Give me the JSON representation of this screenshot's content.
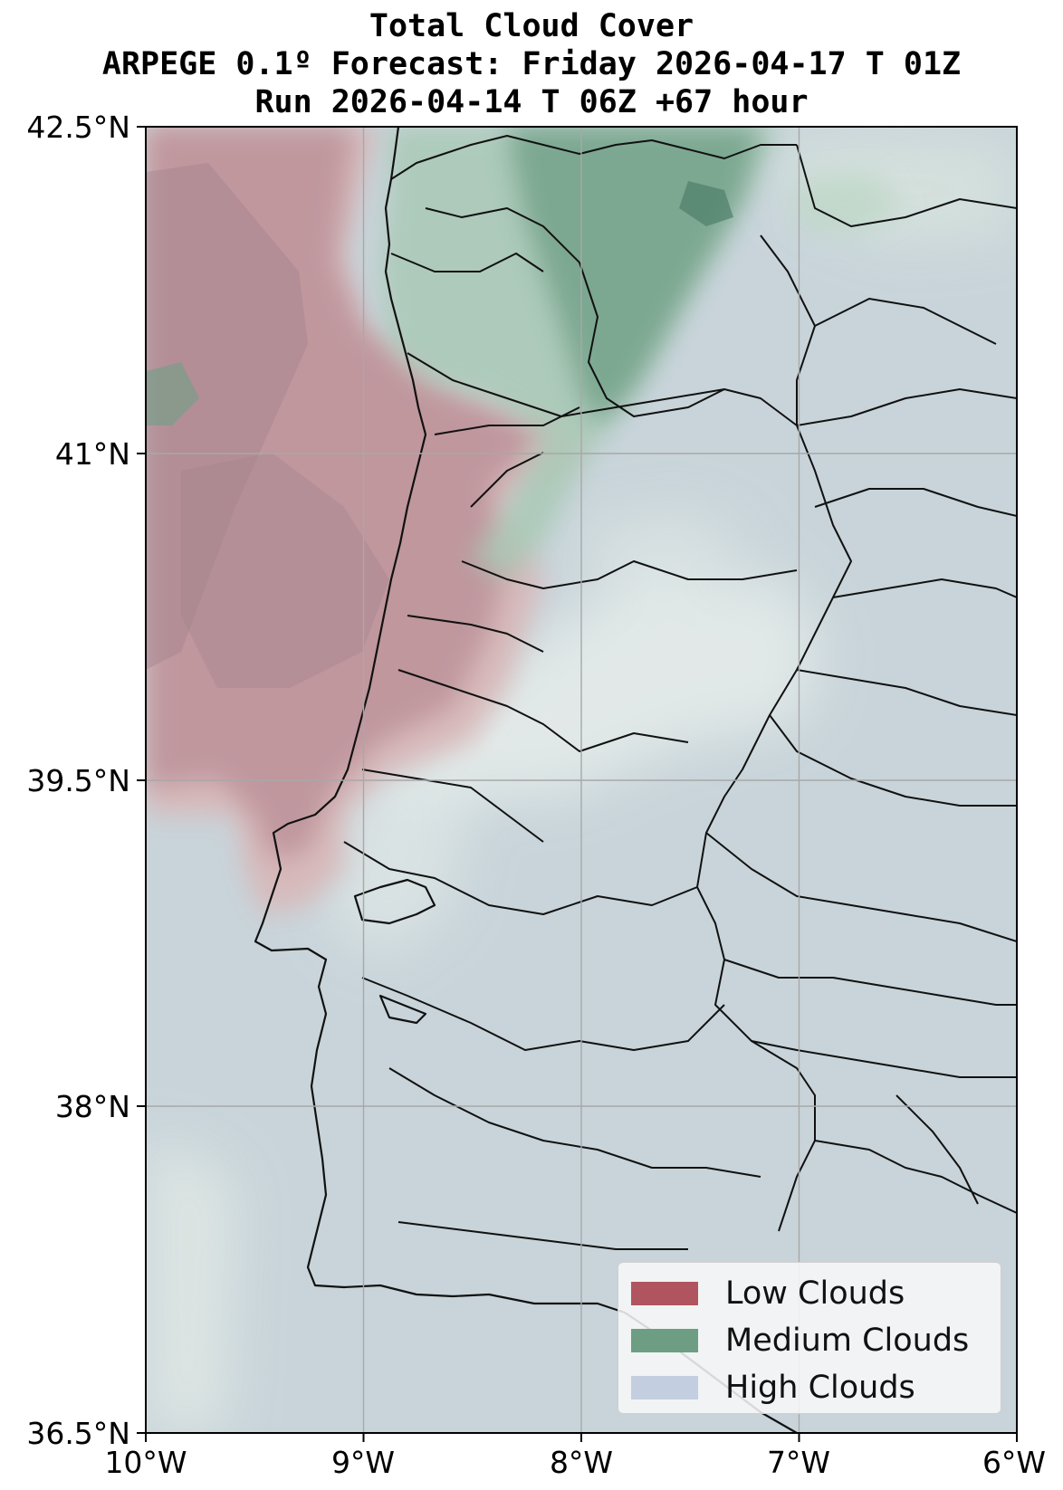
{
  "title": {
    "line1": "Total Cloud Cover",
    "line2": "ARPEGE 0.1º Forecast: Friday 2026-04-17 T 01Z",
    "line3": "Run 2026-04-14 T 06Z +67 hour"
  },
  "axes": {
    "lat_ticks": [
      "42.5°N",
      "41°N",
      "39.5°N",
      "38°N",
      "36.5°N"
    ],
    "lon_ticks": [
      "10°W",
      "9°W",
      "8°W",
      "7°W",
      "6°W"
    ],
    "lat_range": [
      36.5,
      42.5
    ],
    "lon_range": [
      -10,
      -6
    ],
    "grid": true
  },
  "legend": {
    "items": [
      {
        "label": "Low Clouds",
        "color": "#b0555f"
      },
      {
        "label": "Medium Clouds",
        "color": "#6d9e84"
      },
      {
        "label": "High Clouds",
        "color": "#c3cfe0"
      }
    ],
    "placement": "lower-right"
  },
  "colors": {
    "low_clouds": "#b0555f",
    "medium_clouds": "#6d9e84",
    "high_clouds": "#c3cfe0",
    "background_haze": "#c7d3d9"
  },
  "map_region": "Portugal",
  "features": [
    "coastline",
    "administrative-boundaries",
    "graticule",
    "filled-contours"
  ]
}
